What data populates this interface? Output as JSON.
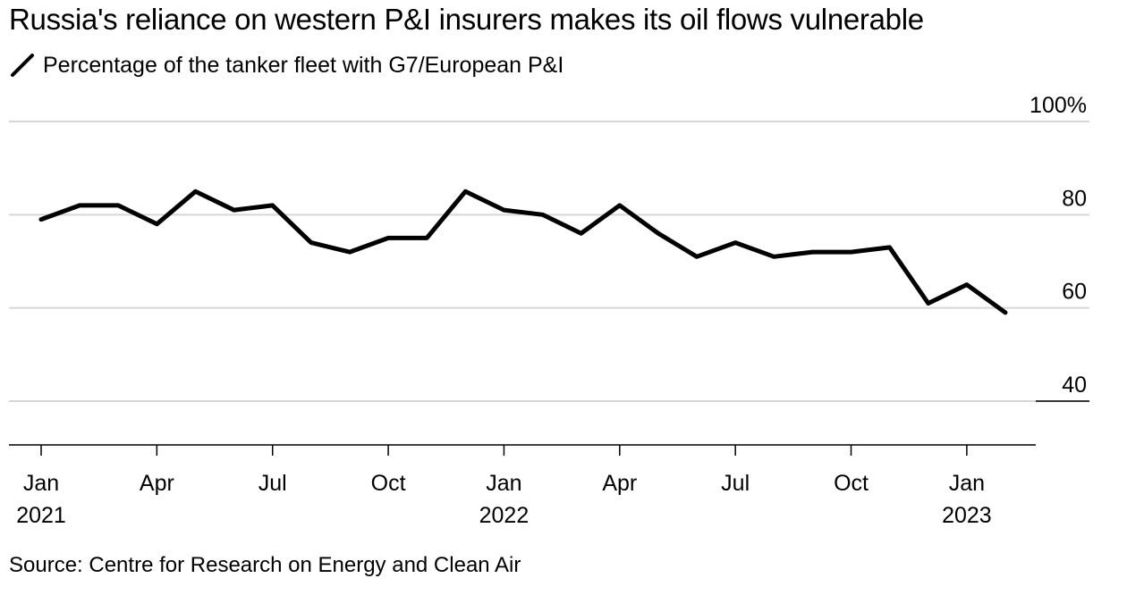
{
  "chart_data": {
    "type": "line",
    "title": "Russia's reliance on western P&I insurers makes its oil flows vulnerable",
    "legend": [
      {
        "label": "Percentage of the tanker fleet with G7/European P&I",
        "color": "#000000"
      }
    ],
    "source": "Source: Centre for Research on Energy and Clean Air",
    "xlabel": "",
    "ylabel": "",
    "ylim": [
      30,
      100
    ],
    "y_ticks": [
      {
        "value": 100,
        "label": "100%"
      },
      {
        "value": 80,
        "label": "80"
      },
      {
        "value": 60,
        "label": "60"
      },
      {
        "value": 40,
        "label": "40"
      }
    ],
    "x_ticks": [
      {
        "index": 0,
        "line1": "Jan",
        "line2": "2021"
      },
      {
        "index": 3,
        "line1": "Apr",
        "line2": ""
      },
      {
        "index": 6,
        "line1": "Jul",
        "line2": ""
      },
      {
        "index": 9,
        "line1": "Oct",
        "line2": ""
      },
      {
        "index": 12,
        "line1": "Jan",
        "line2": "2022"
      },
      {
        "index": 15,
        "line1": "Apr",
        "line2": ""
      },
      {
        "index": 18,
        "line1": "Jul",
        "line2": ""
      },
      {
        "index": 21,
        "line1": "Oct",
        "line2": ""
      },
      {
        "index": 24,
        "line1": "Jan",
        "line2": "2023"
      }
    ],
    "series": [
      {
        "name": "Percentage of the tanker fleet with G7/European P&I",
        "color": "#000000",
        "x": [
          "2021-01",
          "2021-02",
          "2021-03",
          "2021-04",
          "2021-05",
          "2021-06",
          "2021-07",
          "2021-08",
          "2021-09",
          "2021-10",
          "2021-11",
          "2021-12",
          "2022-01",
          "2022-02",
          "2022-03",
          "2022-04",
          "2022-05",
          "2022-06",
          "2022-07",
          "2022-08",
          "2022-09",
          "2022-10",
          "2022-11",
          "2022-12",
          "2023-01",
          "2023-02"
        ],
        "values": [
          79,
          82,
          82,
          78,
          85,
          81,
          82,
          74,
          72,
          75,
          75,
          85,
          81,
          80,
          76,
          82,
          76,
          71,
          74,
          71,
          72,
          72,
          73,
          61,
          65,
          59
        ]
      }
    ]
  }
}
